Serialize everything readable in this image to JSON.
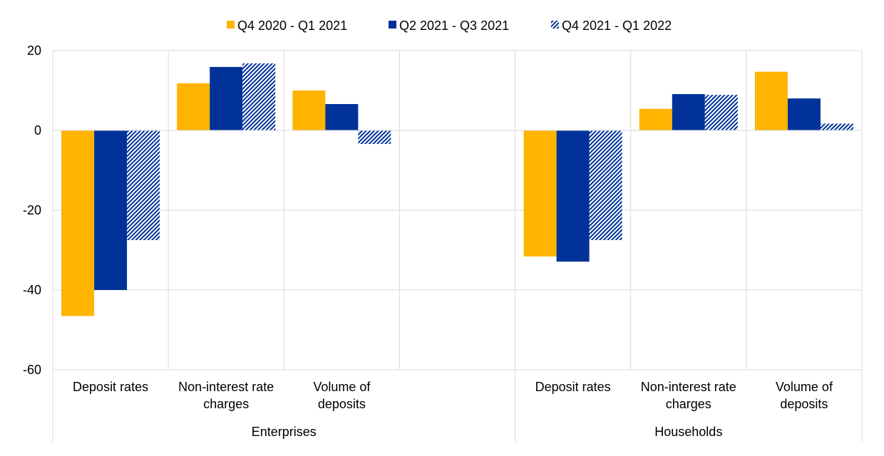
{
  "chart_data": {
    "type": "bar",
    "groups": [
      {
        "label": "Enterprises",
        "categories": [
          "Deposit rates",
          "Non-interest rate charges",
          "Volume of deposits"
        ]
      },
      {
        "label": "Households",
        "categories": [
          "Deposit rates",
          "Non-interest rate charges",
          "Volume of deposits"
        ]
      }
    ],
    "category_lines": [
      [
        "Deposit rates"
      ],
      [
        "Non-interest rate",
        "charges"
      ],
      [
        "Volume of",
        "deposits"
      ]
    ],
    "series": [
      {
        "name": "Q4 2020 - Q1 2021",
        "pattern": "solid",
        "color": "#FFB400",
        "values": [
          -46.5,
          11.8,
          10.0,
          -31.6,
          5.4,
          14.7
        ]
      },
      {
        "name": "Q2 2021 - Q3 2021",
        "pattern": "solid",
        "color": "#003299",
        "values": [
          -40.0,
          15.9,
          6.6,
          -32.9,
          9.1,
          8.0
        ]
      },
      {
        "name": "Q4 2021 - Q1 2022",
        "pattern": "hatched",
        "color": "#003299",
        "values": [
          -27.5,
          16.8,
          -3.4,
          -27.5,
          8.9,
          1.7
        ]
      }
    ],
    "ylim": [
      -60,
      20
    ],
    "yticks": [
      20,
      0,
      -20,
      -40,
      -60
    ],
    "grid": true,
    "legend_position": "top-center",
    "title": "",
    "xlabel": "",
    "ylabel": ""
  }
}
